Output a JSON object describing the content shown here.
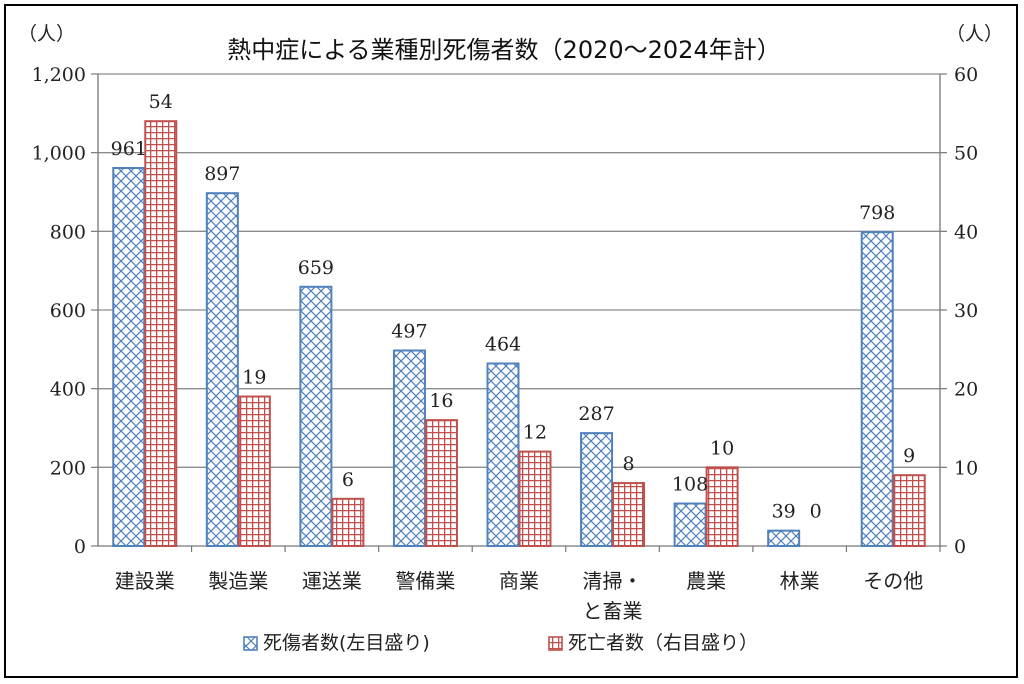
{
  "chart_data": {
    "type": "bar",
    "title": "熱中症による業種別死傷者数（2020～2024年計）",
    "y_left_unit": "（人）",
    "y_right_unit": "（人）",
    "categories": [
      [
        "建設業"
      ],
      [
        "製造業"
      ],
      [
        "運送業"
      ],
      [
        "警備業"
      ],
      [
        "商業"
      ],
      [
        "清掃・",
        "と畜業"
      ],
      [
        "農業"
      ],
      [
        "林業"
      ],
      [
        "その他"
      ]
    ],
    "series": [
      {
        "name": "死傷者数(左目盛り)",
        "axis": "left",
        "color": "#4f81bd",
        "pattern": "diagonal-cross",
        "values": [
          961,
          897,
          659,
          497,
          464,
          287,
          108,
          39,
          798
        ]
      },
      {
        "name": "死亡者数（右目盛り）",
        "axis": "right",
        "color": "#c0504d",
        "pattern": "grid",
        "values": [
          54,
          19,
          6,
          16,
          12,
          8,
          10,
          0,
          9
        ]
      }
    ],
    "y_left": {
      "lim": [
        0,
        1200
      ],
      "ticks": [
        "0",
        "200",
        "400",
        "600",
        "800",
        "1,000",
        "1,200"
      ]
    },
    "y_right": {
      "lim": [
        0,
        60
      ],
      "ticks": [
        "0",
        "10",
        "20",
        "30",
        "40",
        "50",
        "60"
      ]
    },
    "grid": true,
    "legend_position": "bottom"
  }
}
